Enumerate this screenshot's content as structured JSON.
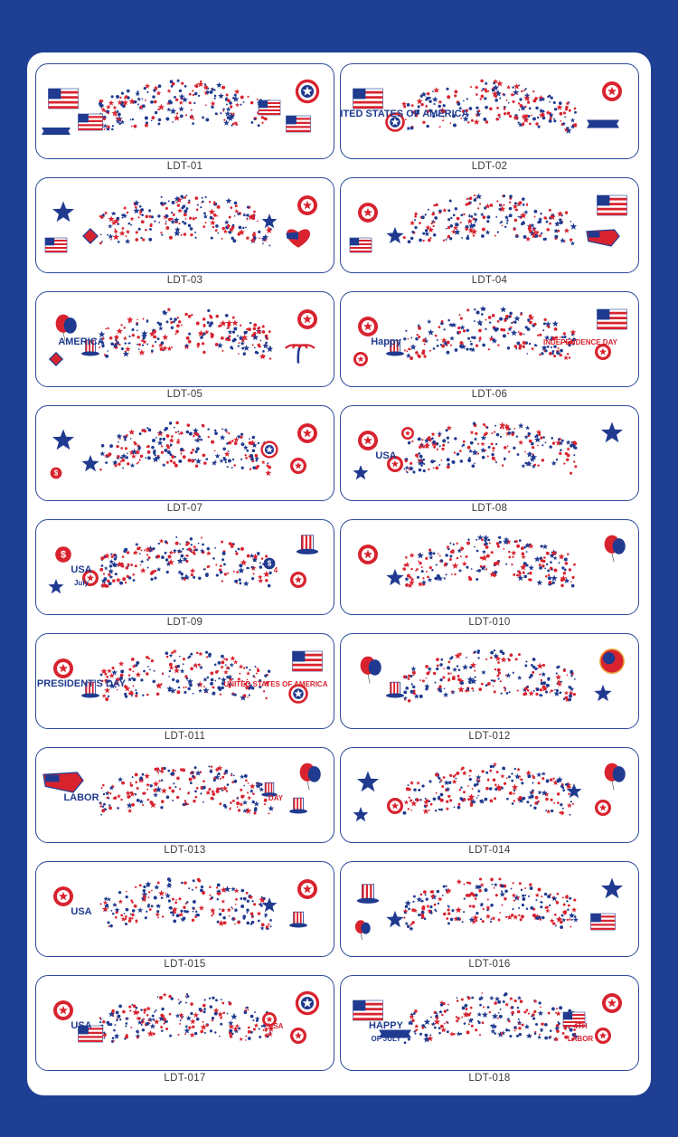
{
  "colors": {
    "background": "#1e3f93",
    "panel": "#ffffff",
    "border": "#2a4a9a",
    "red": "#d8232f",
    "blue": "#1f3a8f"
  },
  "tiles": [
    {
      "code": "LDT-01",
      "left": [
        "flag-icon",
        "flag-icon",
        "banner-icon"
      ],
      "right": [
        "shield-icon",
        "flag-icon",
        "flag-icon"
      ],
      "texts": []
    },
    {
      "code": "LDT-02",
      "left": [
        "flag-icon",
        "shield-star-icon"
      ],
      "right": [
        "magnifier-icon",
        "banner-icon"
      ],
      "texts": [
        "THE UNITED STATES OF AMERICA"
      ]
    },
    {
      "code": "LDT-03",
      "left": [
        "star-icon",
        "diamond-icon",
        "flag-icon"
      ],
      "right": [
        "badge-icon",
        "heart-flag-icon",
        "star-icon"
      ],
      "texts": []
    },
    {
      "code": "LDT-04",
      "left": [
        "wings-icon",
        "star-icon",
        "flag-icon"
      ],
      "right": [
        "flag-icon",
        "usa-map-icon"
      ],
      "texts": []
    },
    {
      "code": "LDT-05",
      "left": [
        "balloon-icon",
        "hat-icon",
        "diamond-icon"
      ],
      "right": [
        "surfboard-icon",
        "palm-tree-icon"
      ],
      "texts": [
        "AMERICA"
      ]
    },
    {
      "code": "LDT-06",
      "left": [
        "football-icon",
        "uncle-sam-hat-icon",
        "badge-icon"
      ],
      "right": [
        "flag-icon",
        "statue-of-liberty-icon"
      ],
      "texts": [
        "Happy",
        "INDEPENDENCE DAY"
      ]
    },
    {
      "code": "LDT-07",
      "left": [
        "star-icon",
        "star-icon",
        "dollar-icon"
      ],
      "right": [
        "cap-icon",
        "eagle-icon",
        "shield-icon"
      ],
      "texts": []
    },
    {
      "code": "LDT-08",
      "left": [
        "umbrella-icon",
        "helmet-icon",
        "star-icon",
        "glasses-icon"
      ],
      "right": [
        "star-icon"
      ],
      "texts": [
        "USA"
      ]
    },
    {
      "code": "LDT-09",
      "left": [
        "dollar-icon",
        "statue-of-liberty-icon",
        "star-icon"
      ],
      "right": [
        "hat-icon",
        "elephant-icon",
        "coin-icon"
      ],
      "texts": [
        "USA",
        "4",
        "July"
      ]
    },
    {
      "code": "LDT-010",
      "left": [
        "cupcake-icon",
        "star-icon"
      ],
      "right": [
        "balloon-icon"
      ],
      "texts": []
    },
    {
      "code": "LDT-011",
      "left": [
        "badge-icon",
        "hat-icon"
      ],
      "right": [
        "flag-icon",
        "shield-star-icon"
      ],
      "texts": [
        "PRESIDENT'S DAY",
        "UNITED STATES OF AMERICA"
      ]
    },
    {
      "code": "LDT-012",
      "left": [
        "balloon-icon",
        "party-hat-icon"
      ],
      "right": [
        "flag-circle-icon",
        "star-icon"
      ],
      "texts": []
    },
    {
      "code": "LDT-013",
      "left": [
        "usa-map-icon"
      ],
      "right": [
        "balloon-icon",
        "party-hat-icon",
        "hat-icon"
      ],
      "texts": [
        "LABOR",
        "DAY"
      ]
    },
    {
      "code": "LDT-014",
      "left": [
        "star-icon",
        "rocket-icon",
        "star-icon"
      ],
      "right": [
        "balloon-icon",
        "badge-icon",
        "star-icon"
      ],
      "texts": []
    },
    {
      "code": "LDT-015",
      "left": [
        "glasses-icon"
      ],
      "right": [
        "firework-icon",
        "party-hat-icon",
        "star-icon"
      ],
      "texts": [
        "USA"
      ]
    },
    {
      "code": "LDT-016",
      "left": [
        "uncle-sam-hat-icon",
        "star-icon",
        "balloon-icon"
      ],
      "right": [
        "star-icon",
        "flag-icon"
      ],
      "texts": []
    },
    {
      "code": "LDT-017",
      "left": [
        "badge-icon",
        "flag-icon"
      ],
      "right": [
        "shield-icon",
        "tools-icon",
        "badge-icon"
      ],
      "texts": [
        "USA",
        "USA"
      ]
    },
    {
      "code": "LDT-018",
      "left": [
        "flag-icon",
        "banner-icon"
      ],
      "right": [
        "badge-icon",
        "worker-icon",
        "flag-icon"
      ],
      "texts": [
        "HAPPY",
        "4TH",
        "OF JULY",
        "LABOR"
      ]
    }
  ]
}
